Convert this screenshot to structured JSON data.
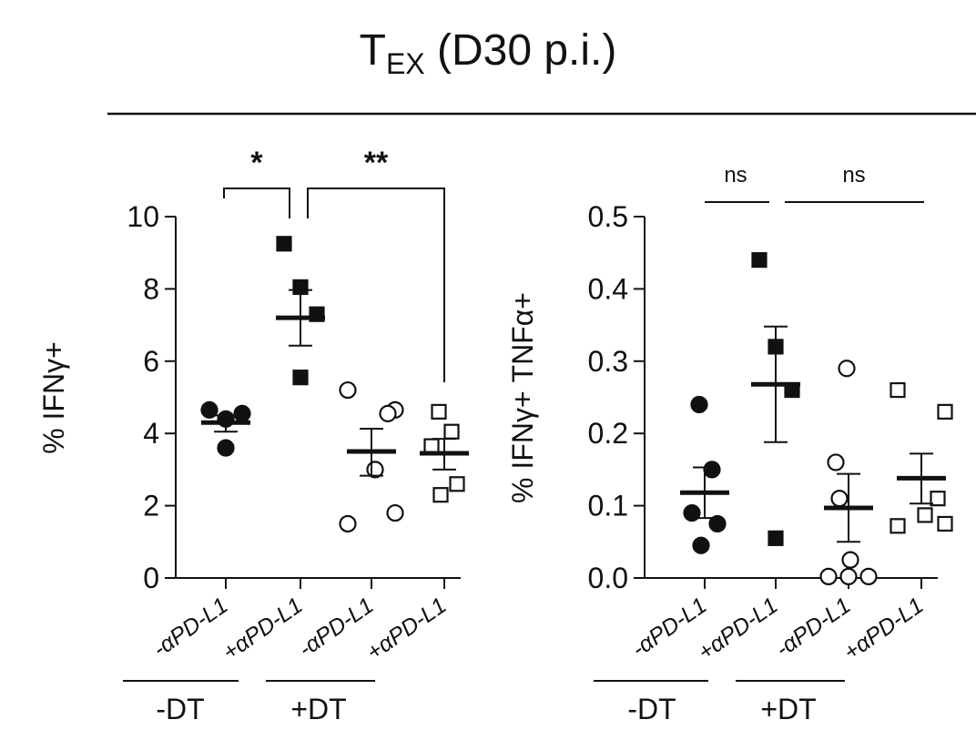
{
  "title": {
    "main": "T",
    "sub": "EX",
    "rest": " (D30 p.i.)"
  },
  "chart_data": [
    {
      "type": "scatter",
      "ylabel": "% IFNγ+",
      "ylim": [
        0,
        10
      ],
      "yticks": [
        "0",
        "2",
        "4",
        "6",
        "8",
        "10"
      ],
      "categories": [
        "-αPD-L1",
        "+αPD-L1",
        "-αPD-L1",
        "+αPD-L1"
      ],
      "group_labels": [
        "-DT",
        "+DT"
      ],
      "series": [
        {
          "marker": "filled-circle",
          "points": [
            4.65,
            4.4,
            4.55,
            3.6
          ],
          "mean": 4.3,
          "sem": [
            4.05,
            4.5
          ]
        },
        {
          "marker": "filled-square",
          "points": [
            9.25,
            8.05,
            7.3,
            5.55
          ],
          "mean": 7.2,
          "sem": [
            6.43,
            7.97
          ]
        },
        {
          "marker": "open-circle",
          "points": [
            5.2,
            4.65,
            4.55,
            3.0,
            1.8,
            1.5
          ],
          "mean": 3.5,
          "sem": [
            2.83,
            4.13
          ]
        },
        {
          "marker": "open-square",
          "points": [
            4.6,
            4.05,
            3.65,
            2.6,
            2.3
          ],
          "mean": 3.45,
          "sem": [
            3.0,
            3.85
          ]
        }
      ],
      "significance": [
        {
          "from": 0,
          "to": 1,
          "label": "*"
        },
        {
          "from": 1,
          "to": 3,
          "label": "**"
        }
      ]
    },
    {
      "type": "scatter",
      "ylabel": "% IFNγ+ TNFα+",
      "ylim": [
        0,
        0.5
      ],
      "yticks": [
        "0.0",
        "0.1",
        "0.2",
        "0.3",
        "0.4",
        "0.5"
      ],
      "categories": [
        "-αPD-L1",
        "+αPD-L1",
        "-αPD-L1",
        "+αPD-L1"
      ],
      "group_labels": [
        "-DT",
        "+DT"
      ],
      "series": [
        {
          "marker": "filled-circle",
          "points": [
            0.24,
            0.15,
            0.09,
            0.075,
            0.045
          ],
          "mean": 0.118,
          "sem": [
            0.083,
            0.153
          ]
        },
        {
          "marker": "filled-square",
          "points": [
            0.44,
            0.32,
            0.26,
            0.055
          ],
          "mean": 0.268,
          "sem": [
            0.188,
            0.348
          ]
        },
        {
          "marker": "open-circle",
          "points": [
            0.29,
            0.16,
            0.11,
            0.025,
            0.002,
            0.002,
            0.002
          ],
          "mean": 0.097,
          "sem": [
            0.05,
            0.144
          ]
        },
        {
          "marker": "open-square",
          "points": [
            0.26,
            0.23,
            0.11,
            0.087,
            0.075,
            0.072
          ],
          "mean": 0.138,
          "sem": [
            0.103,
            0.172
          ]
        }
      ],
      "significance": [
        {
          "from": 0,
          "to": 1,
          "label": "ns"
        },
        {
          "from": 1,
          "to": 3,
          "label": "ns"
        }
      ]
    }
  ]
}
